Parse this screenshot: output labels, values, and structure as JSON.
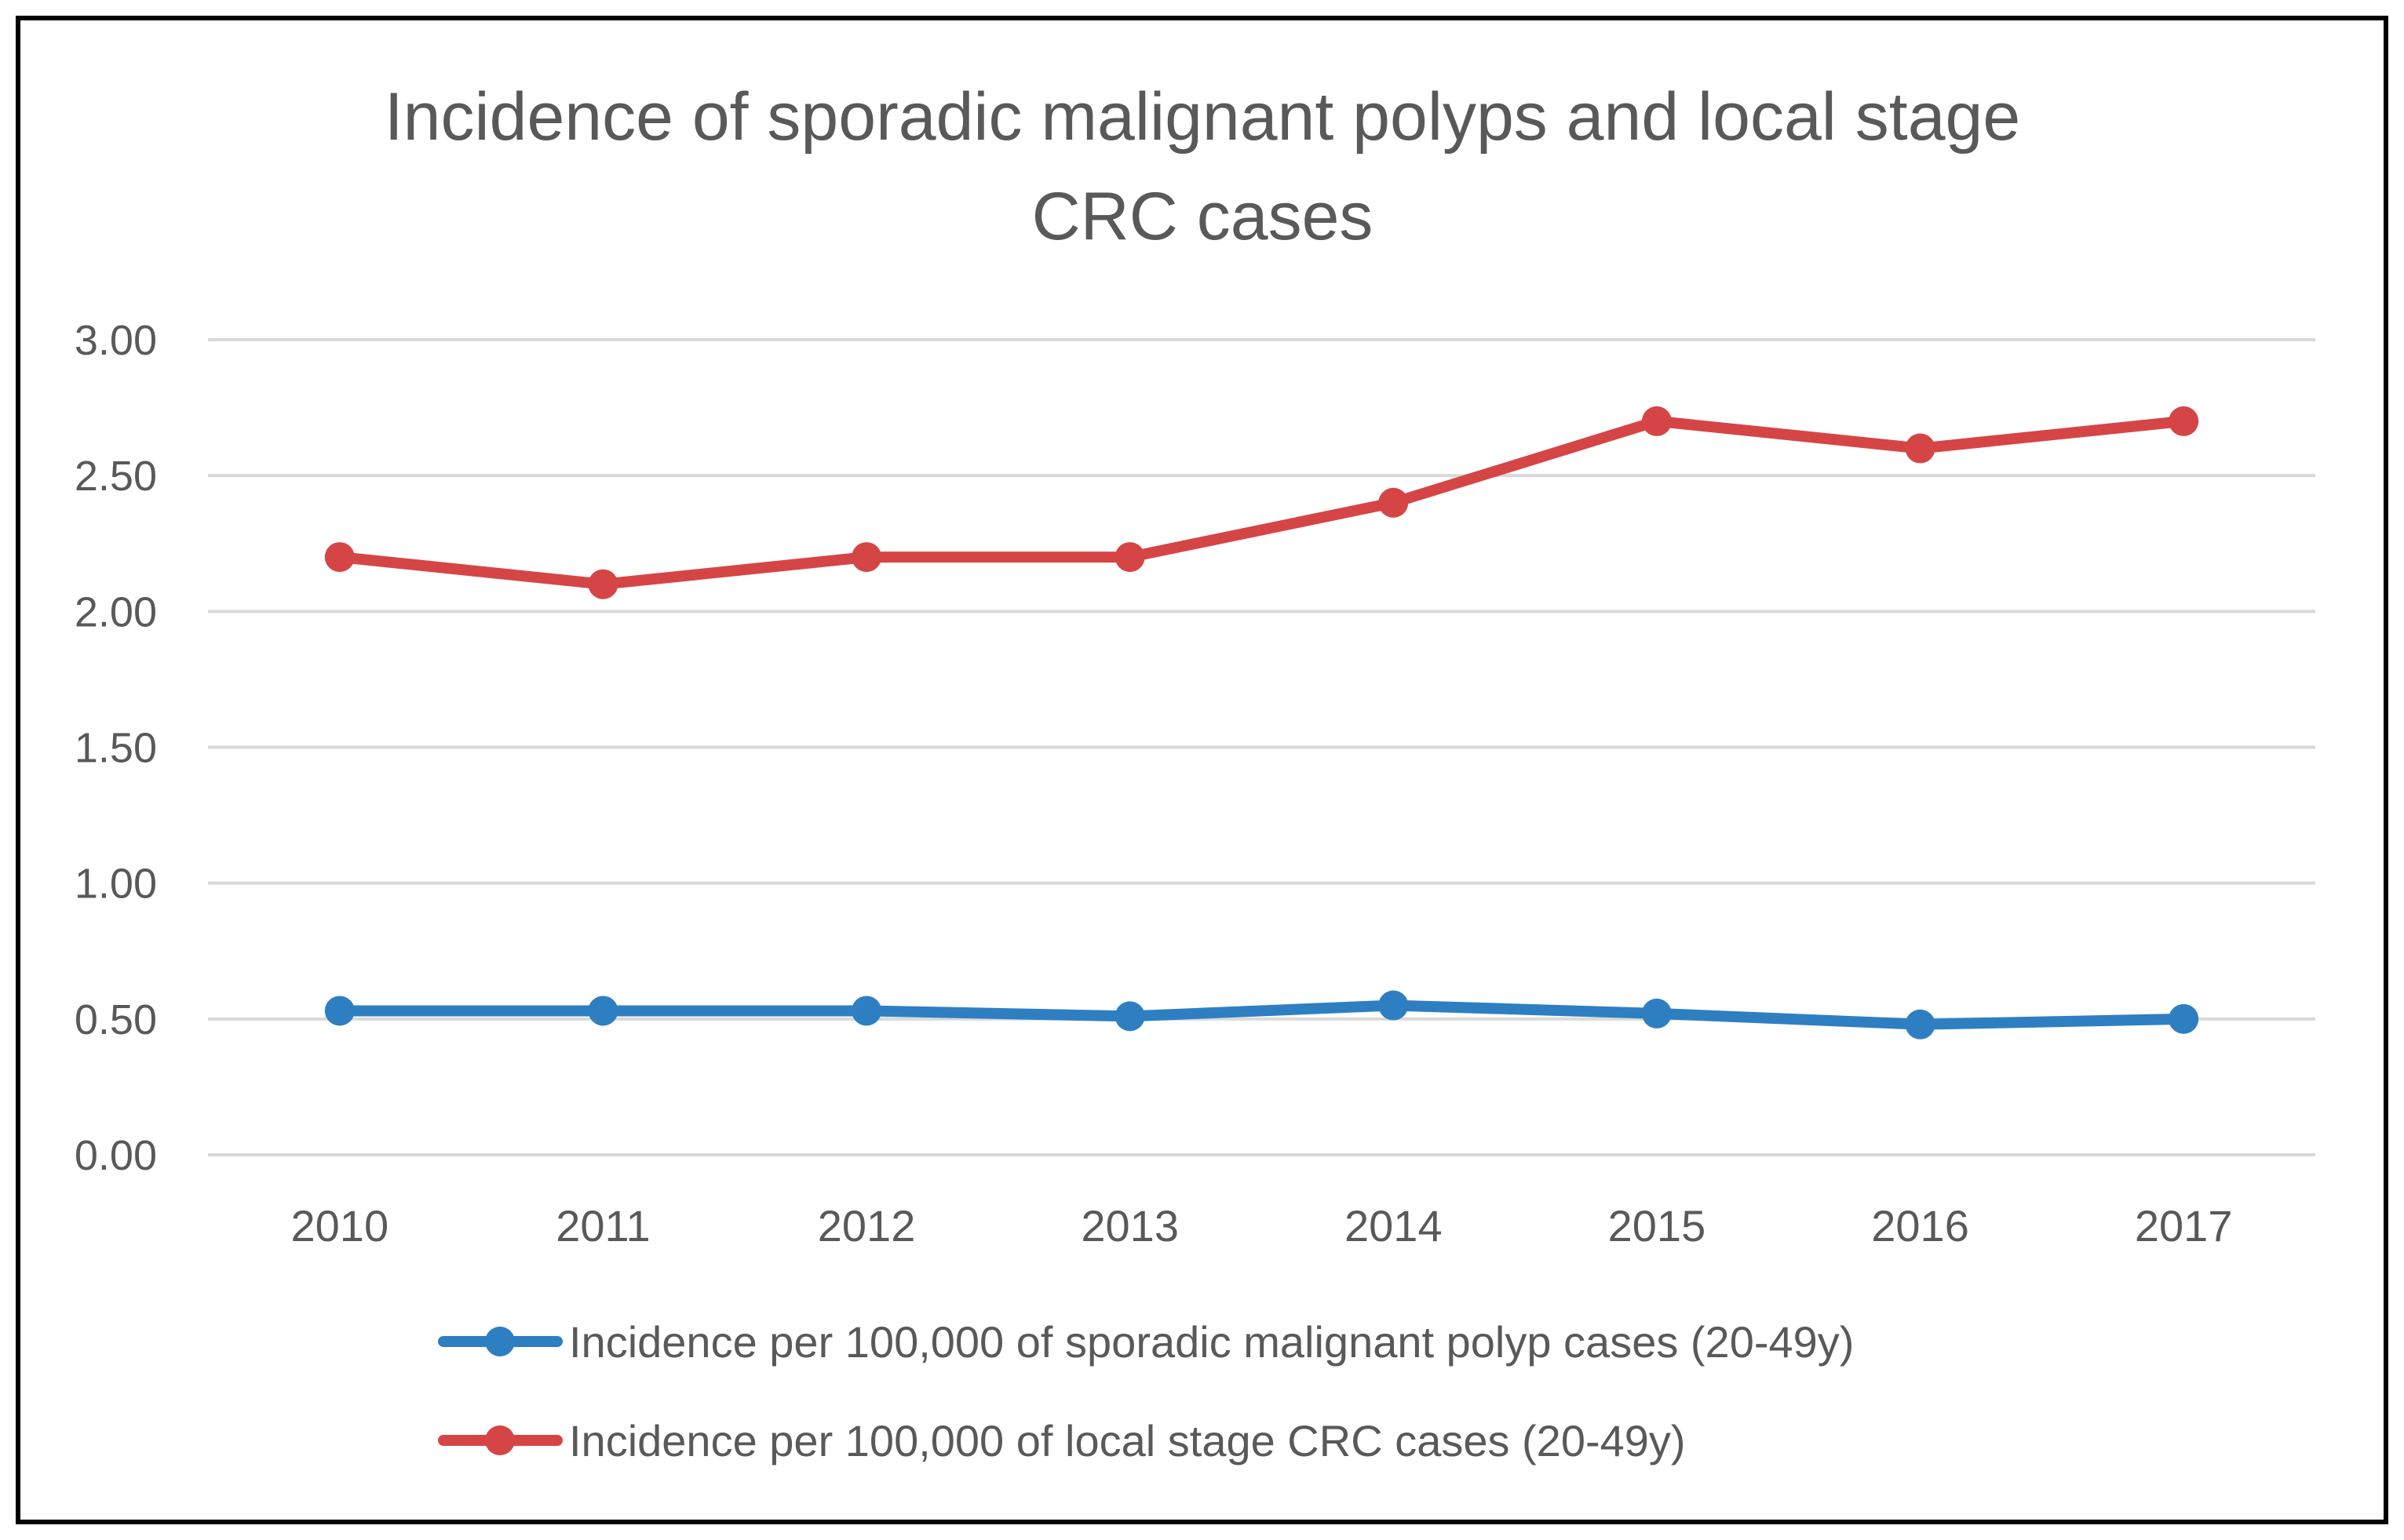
{
  "chart_data": {
    "type": "line",
    "title": "Incidence of sporadic malignant polyps and local stage CRC cases",
    "title_lines": [
      "Incidence of sporadic malignant polyps and local stage",
      "CRC cases"
    ],
    "xlabel": "",
    "ylabel": "",
    "categories": [
      "2010",
      "2011",
      "2012",
      "2013",
      "2014",
      "2015",
      "2016",
      "2017"
    ],
    "ylim": [
      0,
      3
    ],
    "yticks": [
      0,
      0.5,
      1,
      1.5,
      2,
      2.5,
      3
    ],
    "ytick_labels": [
      "0.00",
      "0.50",
      "1.00",
      "1.50",
      "2.00",
      "2.50",
      "3.00"
    ],
    "grid": true,
    "legend_position": "bottom",
    "series": [
      {
        "name": "Incidence per 100,000 of sporadic malignant polyp cases (20-49y)",
        "color": "#2e7fc2",
        "values": [
          0.53,
          0.53,
          0.53,
          0.51,
          0.55,
          0.52,
          0.48,
          0.5
        ]
      },
      {
        "name": "Incidence per 100,000 of local stage CRC cases (20-49y)",
        "color": "#d64545",
        "values": [
          2.2,
          2.1,
          2.2,
          2.2,
          2.4,
          2.7,
          2.6,
          2.7
        ]
      }
    ]
  }
}
